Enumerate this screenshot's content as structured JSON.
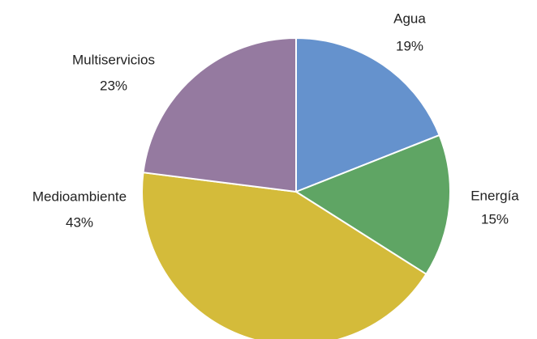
{
  "chart_data": {
    "type": "pie",
    "categories": [
      "Agua",
      "Energía",
      "Medioambiente",
      "Multiservicios"
    ],
    "values": [
      19,
      15,
      43,
      23
    ],
    "value_labels": [
      "19%",
      "15%",
      "43%",
      "23%"
    ],
    "colors": [
      "#6592cd",
      "#5fa564",
      "#d4bb3a",
      "#957aa0"
    ]
  }
}
